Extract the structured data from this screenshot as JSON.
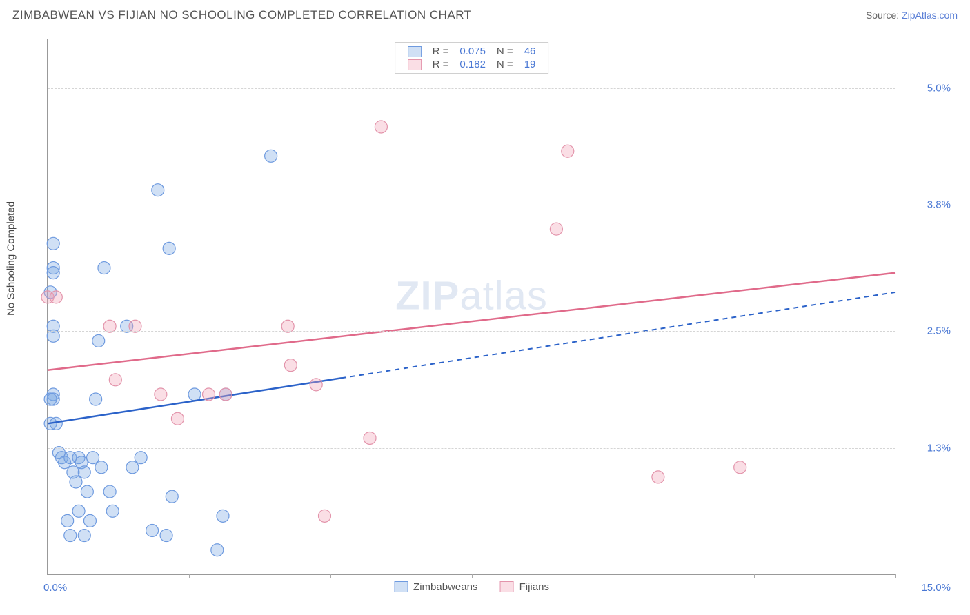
{
  "title": "ZIMBABWEAN VS FIJIAN NO SCHOOLING COMPLETED CORRELATION CHART",
  "source_prefix": "Source: ",
  "source_name": "ZipAtlas.com",
  "watermark_a": "ZIP",
  "watermark_b": "atlas",
  "y_axis_label": "No Schooling Completed",
  "chart": {
    "type": "scatter",
    "x_domain": [
      0,
      15
    ],
    "y_domain": [
      0,
      5.5
    ],
    "x_ticks": [
      0,
      2.5,
      5,
      7.5,
      10,
      12.5,
      15
    ],
    "x_tick_labels_shown": {
      "0": "0.0%",
      "15": "15.0%"
    },
    "y_ticks": [
      1.3,
      2.5,
      3.8,
      5.0
    ],
    "y_tick_labels": [
      "1.3%",
      "2.5%",
      "3.8%",
      "5.0%"
    ],
    "grid_color": "#d5d5d5",
    "axis_color": "#999999",
    "background_color": "#ffffff",
    "tick_label_color": "#4a78d4",
    "series": [
      {
        "name": "Zimbabweans",
        "fill": "rgba(120,165,225,0.35)",
        "stroke": "#6e9adf",
        "line_color": "#2b62c9",
        "marker_r": 9,
        "R": "0.075",
        "N": "46",
        "trend": {
          "x1": 0,
          "y1": 1.55,
          "x2": 15,
          "y2": 2.9,
          "solid_until_x": 5.2
        },
        "points": [
          [
            0.05,
            2.9
          ],
          [
            0.05,
            1.55
          ],
          [
            0.1,
            3.4
          ],
          [
            0.1,
            3.15
          ],
          [
            0.1,
            3.1
          ],
          [
            0.1,
            2.55
          ],
          [
            0.1,
            2.45
          ],
          [
            0.1,
            1.85
          ],
          [
            0.1,
            1.8
          ],
          [
            0.15,
            1.55
          ],
          [
            0.2,
            1.25
          ],
          [
            0.25,
            1.2
          ],
          [
            0.3,
            1.15
          ],
          [
            0.35,
            0.55
          ],
          [
            0.4,
            1.2
          ],
          [
            0.45,
            1.05
          ],
          [
            0.5,
            0.95
          ],
          [
            0.55,
            0.65
          ],
          [
            0.55,
            1.2
          ],
          [
            0.6,
            1.15
          ],
          [
            0.65,
            0.4
          ],
          [
            0.7,
            0.85
          ],
          [
            0.75,
            0.55
          ],
          [
            0.8,
            1.2
          ],
          [
            0.85,
            1.8
          ],
          [
            0.9,
            2.4
          ],
          [
            0.95,
            1.1
          ],
          [
            1.0,
            3.15
          ],
          [
            1.1,
            0.85
          ],
          [
            1.15,
            0.65
          ],
          [
            1.4,
            2.55
          ],
          [
            1.5,
            1.1
          ],
          [
            1.65,
            1.2
          ],
          [
            1.85,
            0.45
          ],
          [
            1.95,
            3.95
          ],
          [
            2.1,
            0.4
          ],
          [
            2.15,
            3.35
          ],
          [
            2.2,
            0.8
          ],
          [
            2.6,
            1.85
          ],
          [
            3.0,
            0.25
          ],
          [
            3.1,
            0.6
          ],
          [
            3.15,
            1.85
          ],
          [
            3.95,
            4.3
          ],
          [
            0.05,
            1.8
          ],
          [
            0.4,
            0.4
          ],
          [
            0.65,
            1.05
          ]
        ]
      },
      {
        "name": "Fijians",
        "fill": "rgba(240,160,180,0.35)",
        "stroke": "#e394ab",
        "line_color": "#e06a8a",
        "marker_r": 9,
        "R": "0.182",
        "N": "19",
        "trend": {
          "x1": 0,
          "y1": 2.1,
          "x2": 15,
          "y2": 3.1,
          "solid_until_x": 15
        },
        "points": [
          [
            0.0,
            2.85
          ],
          [
            1.2,
            2.0
          ],
          [
            1.55,
            2.55
          ],
          [
            2.0,
            1.85
          ],
          [
            2.3,
            1.6
          ],
          [
            2.85,
            1.85
          ],
          [
            3.15,
            1.85
          ],
          [
            4.25,
            2.55
          ],
          [
            4.3,
            2.15
          ],
          [
            4.75,
            1.95
          ],
          [
            4.9,
            0.6
          ],
          [
            5.7,
            1.4
          ],
          [
            5.9,
            4.6
          ],
          [
            9.0,
            3.55
          ],
          [
            9.2,
            4.35
          ],
          [
            10.8,
            1.0
          ],
          [
            12.25,
            1.1
          ],
          [
            0.15,
            2.85
          ],
          [
            1.1,
            2.55
          ]
        ]
      }
    ],
    "legend_top": {
      "R_label": "R =",
      "N_label": "N ="
    },
    "legend_bottom": [
      "Zimbabweans",
      "Fijians"
    ]
  }
}
